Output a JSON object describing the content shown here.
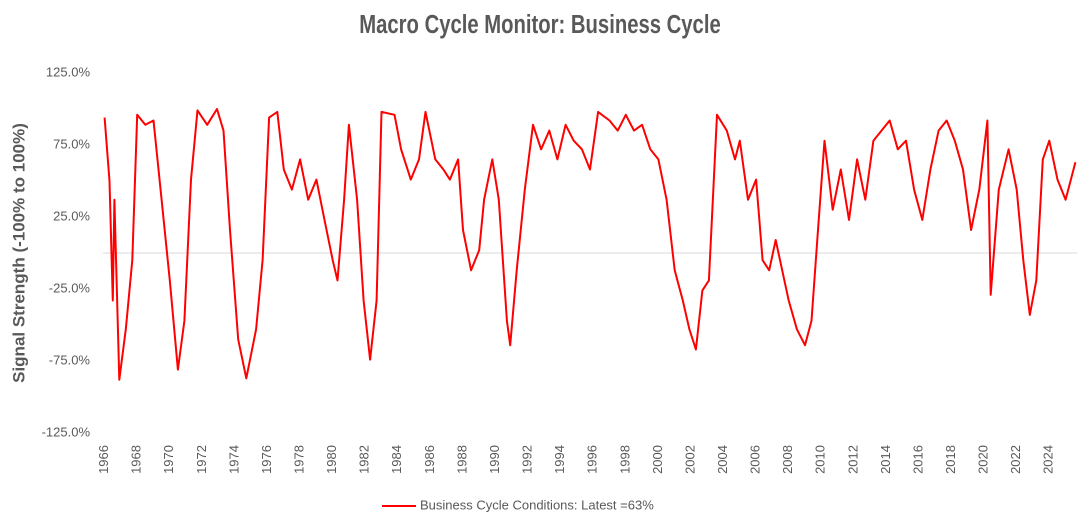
{
  "chart_data": {
    "type": "line",
    "title": "Macro Cycle Monitor: Business Cycle",
    "y_label": "Signal Strength (-100% to 100%)",
    "x": [
      1966.0,
      1966.3,
      1966.5,
      1966.6,
      1966.9,
      1967.3,
      1967.7,
      1968.0,
      1968.5,
      1969.0,
      1969.5,
      1970.0,
      1970.5,
      1970.9,
      1971.3,
      1971.7,
      1972.3,
      1972.9,
      1973.3,
      1973.7,
      1974.2,
      1974.7,
      1975.3,
      1975.7,
      1976.1,
      1976.6,
      1977.0,
      1977.5,
      1978.0,
      1978.5,
      1979.0,
      1979.5,
      1980.0,
      1980.3,
      1980.7,
      1981.0,
      1981.5,
      1981.9,
      1982.3,
      1982.7,
      1983.0,
      1983.8,
      1984.2,
      1984.8,
      1985.3,
      1985.7,
      1986.3,
      1986.8,
      1987.2,
      1987.7,
      1988.0,
      1988.5,
      1989.0,
      1989.3,
      1989.8,
      1990.2,
      1990.7,
      1990.9,
      1991.3,
      1991.8,
      1992.3,
      1992.8,
      1993.3,
      1993.8,
      1994.3,
      1994.8,
      1995.3,
      1995.8,
      1996.3,
      1997.0,
      1997.5,
      1998.0,
      1998.5,
      1999.0,
      1999.5,
      2000.0,
      2000.5,
      2001.0,
      2001.5,
      2001.9,
      2002.3,
      2002.7,
      2003.1,
      2003.6,
      2004.2,
      2004.7,
      2005.0,
      2005.5,
      2006.0,
      2006.4,
      2006.8,
      2007.2,
      2007.6,
      2008.0,
      2008.5,
      2009.0,
      2009.4,
      2009.8,
      2010.2,
      2010.7,
      2011.2,
      2011.7,
      2012.2,
      2012.7,
      2013.2,
      2013.7,
      2014.2,
      2014.7,
      2015.2,
      2015.7,
      2016.2,
      2016.7,
      2017.2,
      2017.7,
      2018.2,
      2018.7,
      2019.2,
      2019.7,
      2020.2,
      2020.4,
      2020.9,
      2021.5,
      2022.0,
      2022.4,
      2022.8,
      2023.2,
      2023.6,
      2024.0,
      2024.5,
      2025.0,
      2025.6
    ],
    "series": [
      {
        "name": "Business Cycle Conditions: Latest =63%",
        "color": "#ff0000",
        "values": [
          94,
          50,
          -33,
          37,
          -88,
          -53,
          -5,
          96,
          89,
          92,
          37,
          -19,
          -81,
          -47,
          51,
          99,
          89,
          100,
          85,
          16,
          -60,
          -87,
          -53,
          -5,
          94,
          98,
          58,
          44,
          65,
          37,
          51,
          23,
          -5,
          -19,
          37,
          89,
          37,
          -33,
          -74,
          -33,
          98,
          96,
          72,
          51,
          65,
          98,
          65,
          58,
          51,
          65,
          16,
          -12,
          2,
          37,
          65,
          37,
          -47,
          -64,
          -12,
          44,
          89,
          72,
          85,
          65,
          89,
          78,
          72,
          58,
          98,
          92,
          85,
          96,
          85,
          89,
          72,
          65,
          37,
          -12,
          -33,
          -53,
          -67,
          -26,
          -19,
          96,
          85,
          65,
          78,
          37,
          51,
          -5,
          -12,
          9,
          -12,
          -33,
          -53,
          -64,
          -47,
          16,
          78,
          30,
          58,
          23,
          65,
          37,
          78,
          85,
          92,
          72,
          78,
          44,
          23,
          58,
          85,
          92,
          78,
          58,
          16,
          44,
          92,
          -29,
          44,
          72,
          44,
          -5,
          -43,
          -19,
          65,
          78,
          51,
          37,
          63
        ]
      }
    ],
    "xlim": [
      1965.9,
      2025.7
    ],
    "xticks": [
      1966,
      1968,
      1970,
      1972,
      1974,
      1976,
      1978,
      1980,
      1982,
      1984,
      1986,
      1988,
      1990,
      1992,
      1994,
      1996,
      1998,
      2000,
      2002,
      2004,
      2006,
      2008,
      2010,
      2012,
      2014,
      2016,
      2018,
      2020,
      2022,
      2024
    ],
    "ylim": [
      -125,
      125
    ],
    "yticks": [
      {
        "value": 125,
        "label": "125.0%"
      },
      {
        "value": 75,
        "label": "75.0%"
      },
      {
        "value": 25,
        "label": "25.0%"
      },
      {
        "value": -25,
        "label": "-25.0%"
      },
      {
        "value": -75,
        "label": "-75.0%"
      },
      {
        "value": -125,
        "label": "-125.0%"
      }
    ],
    "grid": false,
    "legend": "bottom"
  }
}
